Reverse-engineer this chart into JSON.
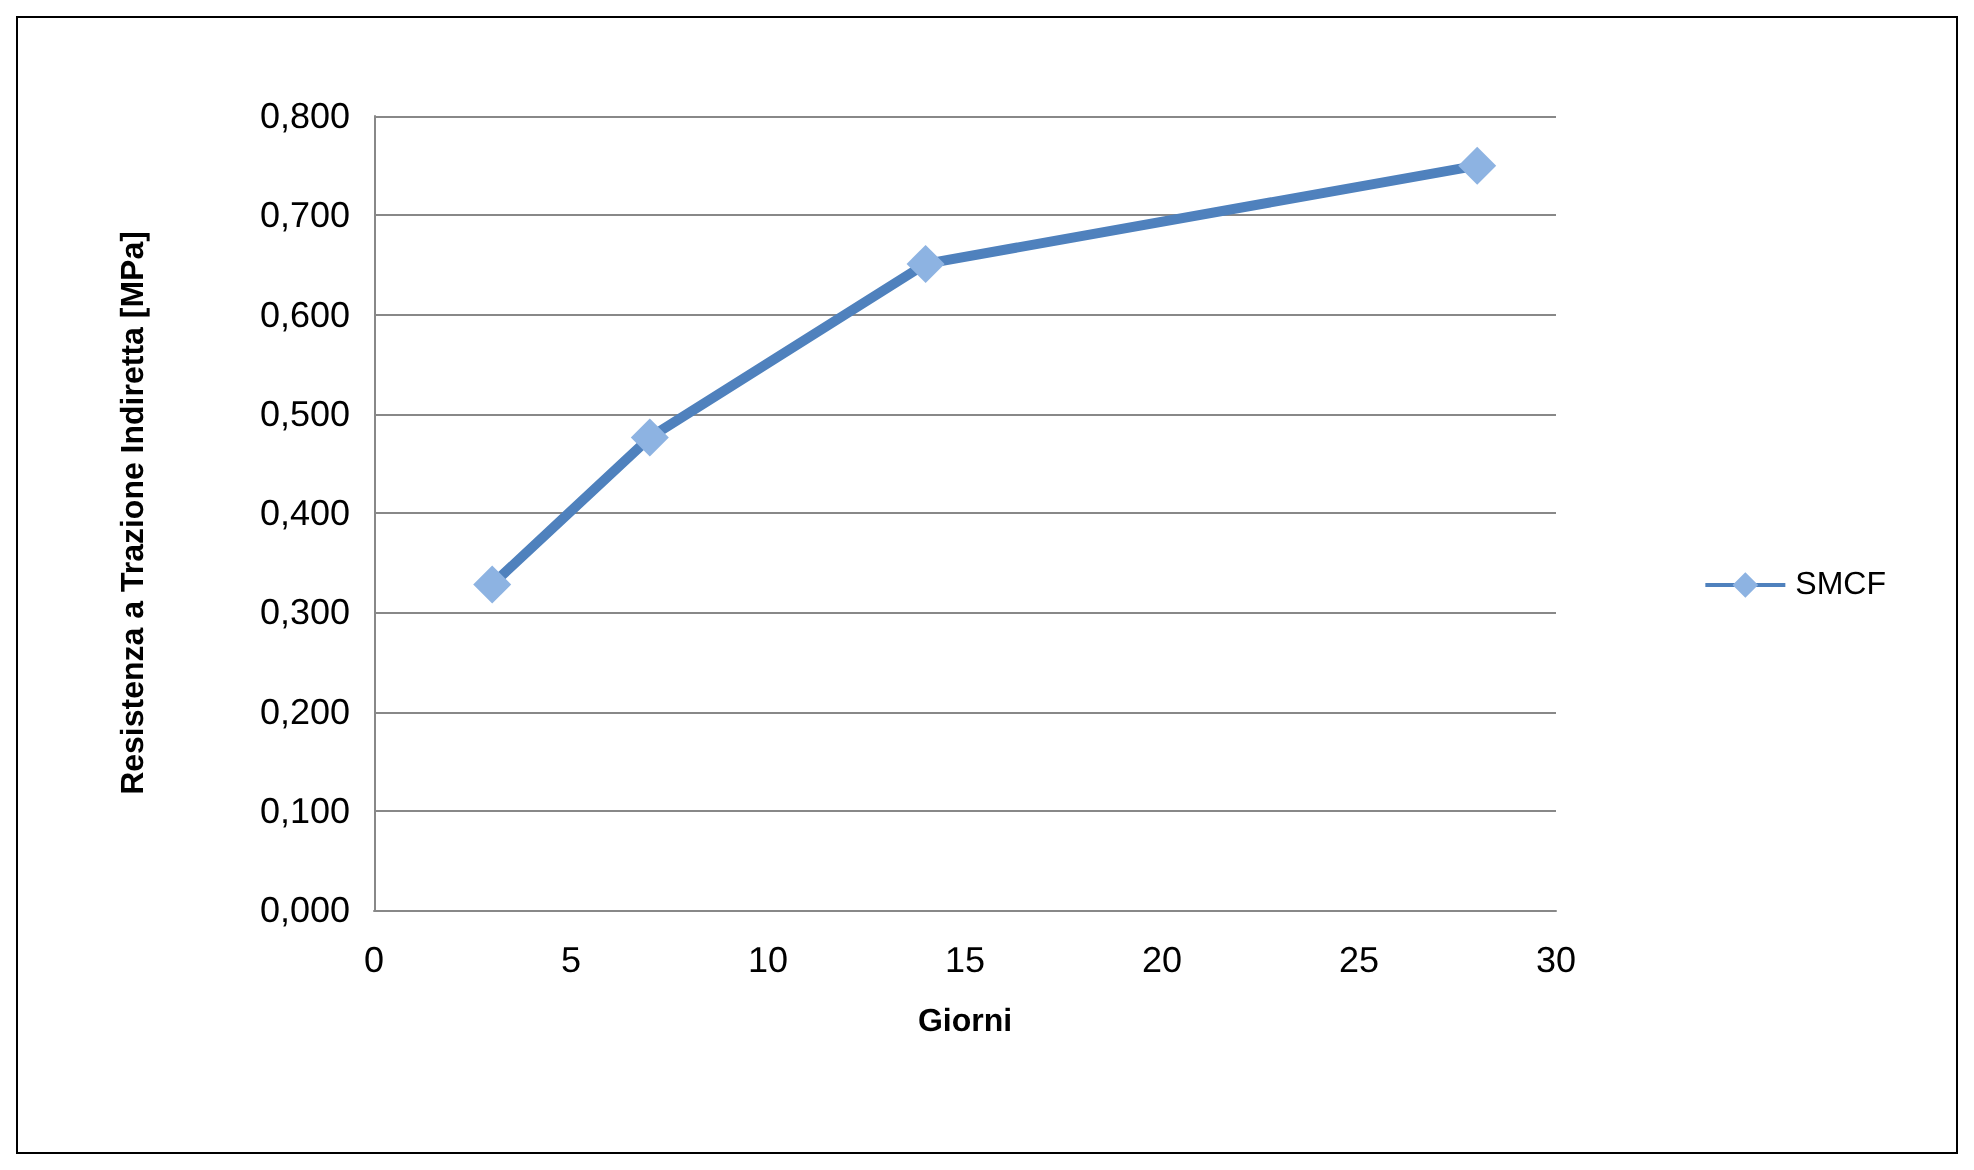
{
  "chart_data": {
    "type": "line",
    "xlabel": "Giorni",
    "ylabel": "Resistenza a Trazione Indiretta [MPa]",
    "x": [
      3,
      7,
      14,
      28
    ],
    "series": [
      {
        "name": "SMCF",
        "color": "#4f81bd",
        "values": [
          0.328,
          0.476,
          0.651,
          0.75
        ]
      }
    ],
    "xlim": [
      0,
      30
    ],
    "xticks": [
      0,
      5,
      10,
      15,
      20,
      25,
      30
    ],
    "ylim": [
      0,
      0.8
    ],
    "yticks": [
      {
        "value": 0,
        "label": "0,000"
      },
      {
        "value": 0.1,
        "label": "0,100"
      },
      {
        "value": 0.2,
        "label": "0,200"
      },
      {
        "value": 0.3,
        "label": "0,300"
      },
      {
        "value": 0.4,
        "label": "0,400"
      },
      {
        "value": 0.5,
        "label": "0,500"
      },
      {
        "value": 0.6,
        "label": "0,600"
      },
      {
        "value": 0.7,
        "label": "0,700"
      },
      {
        "value": 0.8,
        "label": "0,800"
      }
    ],
    "grid": "y",
    "legend": "right",
    "marker": "diamond",
    "line_style": "solid"
  }
}
